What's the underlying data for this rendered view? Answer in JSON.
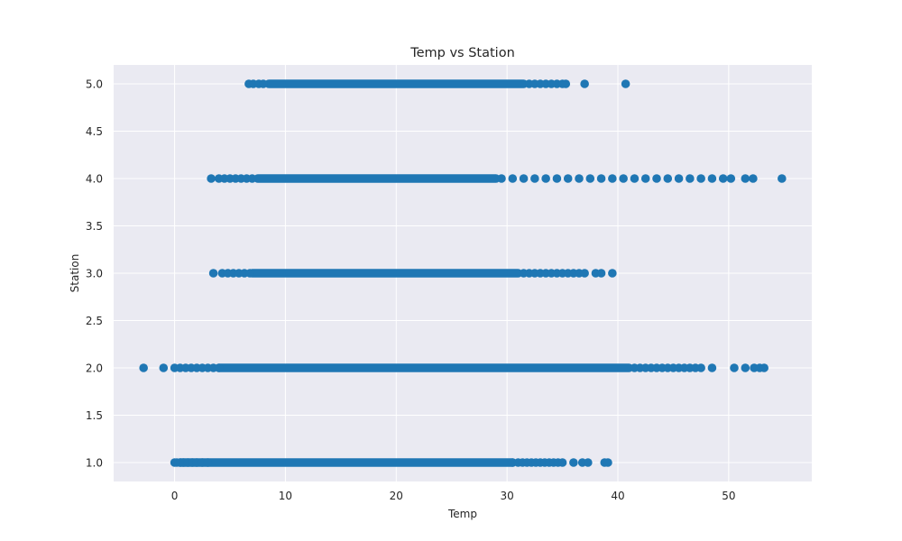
{
  "chart_data": {
    "type": "scatter",
    "title": "Temp vs Station",
    "xlabel": "Temp",
    "ylabel": "Station",
    "xlim": [
      -5.5,
      57.5
    ],
    "ylim": [
      0.8,
      5.2
    ],
    "x_ticks": [
      0,
      10,
      20,
      30,
      40,
      50
    ],
    "y_ticks": [
      1.0,
      1.5,
      2.0,
      2.5,
      3.0,
      3.5,
      4.0,
      4.5,
      5.0
    ],
    "x_tick_labels": [
      "0",
      "10",
      "20",
      "30",
      "40",
      "50"
    ],
    "y_tick_labels": [
      "1.0",
      "1.5",
      "2.0",
      "2.5",
      "3.0",
      "3.5",
      "4.0",
      "4.5",
      "5.0"
    ],
    "grid": true,
    "marker_color": "#1f77b4",
    "background_color": "#eaeaf2",
    "series": [
      {
        "station": 1.0,
        "dense_range": [
          0.5,
          30.5
        ],
        "x": [
          0.0,
          0.2,
          0.5,
          0.8,
          1.2,
          1.6,
          2.0,
          2.5,
          3.0,
          30.5,
          31.0,
          31.4,
          31.8,
          32.2,
          32.6,
          33.0,
          33.4,
          33.8,
          34.2,
          34.6,
          35.0,
          36.0,
          36.8,
          37.3,
          38.8,
          39.1
        ]
      },
      {
        "station": 2.0,
        "dense_range": [
          4.0,
          41.0
        ],
        "x": [
          -2.8,
          -1.0,
          0.0,
          0.5,
          1.0,
          1.5,
          2.0,
          2.5,
          3.0,
          3.5,
          4.0,
          41.5,
          42.0,
          42.5,
          43.0,
          43.5,
          44.0,
          44.5,
          45.0,
          45.5,
          46.0,
          46.5,
          47.0,
          47.5,
          48.5,
          50.5,
          51.5,
          52.3,
          52.8,
          53.2
        ]
      },
      {
        "station": 3.0,
        "dense_range": [
          7.0,
          31.0
        ],
        "x": [
          3.5,
          4.3,
          4.8,
          5.3,
          5.8,
          6.3,
          6.8,
          31.5,
          32.0,
          32.5,
          33.0,
          33.5,
          34.0,
          34.5,
          35.0,
          35.5,
          36.0,
          36.5,
          37.0,
          38.0,
          38.5,
          39.5
        ]
      },
      {
        "station": 4.0,
        "dense_range": [
          7.5,
          29.0
        ],
        "x": [
          3.3,
          4.0,
          4.5,
          5.0,
          5.5,
          6.0,
          6.5,
          7.0,
          29.5,
          30.5,
          31.5,
          32.5,
          33.5,
          34.5,
          35.5,
          36.5,
          37.5,
          38.5,
          39.5,
          40.5,
          41.5,
          42.5,
          43.5,
          44.5,
          45.5,
          46.5,
          47.5,
          48.5,
          49.5,
          50.2,
          51.5,
          52.2,
          54.8
        ]
      },
      {
        "station": 5.0,
        "dense_range": [
          8.5,
          31.5
        ],
        "x": [
          6.7,
          7.1,
          7.6,
          8.0,
          32.0,
          32.5,
          33.0,
          33.5,
          34.0,
          34.5,
          35.0,
          35.3,
          37.0,
          40.7
        ]
      }
    ]
  }
}
